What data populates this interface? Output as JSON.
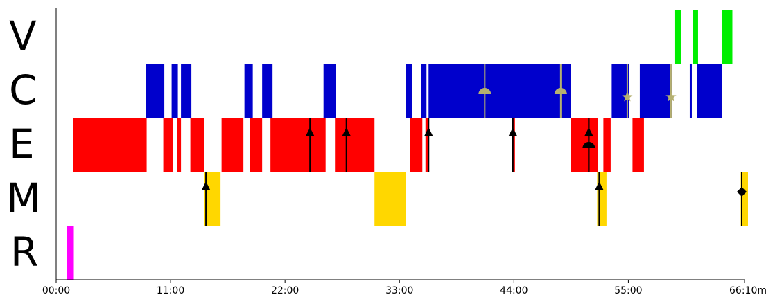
{
  "chart_data": {
    "type": "timeline",
    "x_unit": "minutes",
    "xlim": [
      0,
      66.1667
    ],
    "x_ticks": [
      {
        "value": 0,
        "label": "00:00"
      },
      {
        "value": 11,
        "label": "11:00"
      },
      {
        "value": 22,
        "label": "22:00"
      },
      {
        "value": 33,
        "label": "33:00"
      },
      {
        "value": 44,
        "label": "44:00"
      },
      {
        "value": 55,
        "label": "55:00"
      },
      {
        "value": 66.1667,
        "label": "66:10m"
      }
    ],
    "rows": [
      {
        "label": "V",
        "color": "#00ee00"
      },
      {
        "label": "C",
        "color": "#0000cc"
      },
      {
        "label": "E",
        "color": "#ff0000"
      },
      {
        "label": "M",
        "color": "#ffd700"
      },
      {
        "label": "R",
        "color": "#ff00ff"
      }
    ],
    "segments": [
      {
        "row": "V",
        "start": 59.5,
        "end": 60.1
      },
      {
        "row": "V",
        "start": 61.2,
        "end": 61.7
      },
      {
        "row": "V",
        "start": 64.0,
        "end": 65.0
      },
      {
        "row": "C",
        "start": 8.6,
        "end": 10.4
      },
      {
        "row": "C",
        "start": 11.1,
        "end": 11.7
      },
      {
        "row": "C",
        "start": 12.0,
        "end": 13.0
      },
      {
        "row": "C",
        "start": 18.1,
        "end": 18.9
      },
      {
        "row": "C",
        "start": 19.8,
        "end": 20.8
      },
      {
        "row": "C",
        "start": 25.7,
        "end": 26.9
      },
      {
        "row": "C",
        "start": 33.6,
        "end": 34.2
      },
      {
        "row": "C",
        "start": 35.1,
        "end": 35.6
      },
      {
        "row": "C",
        "start": 35.8,
        "end": 49.5
      },
      {
        "row": "C",
        "start": 53.4,
        "end": 55.1
      },
      {
        "row": "C",
        "start": 56.1,
        "end": 59.2
      },
      {
        "row": "C",
        "start": 60.9,
        "end": 61.1
      },
      {
        "row": "C",
        "start": 61.6,
        "end": 64.0
      },
      {
        "row": "E",
        "start": 1.6,
        "end": 8.7
      },
      {
        "row": "E",
        "start": 10.3,
        "end": 11.2
      },
      {
        "row": "E",
        "start": 11.6,
        "end": 12.0
      },
      {
        "row": "E",
        "start": 12.9,
        "end": 14.2
      },
      {
        "row": "E",
        "start": 15.9,
        "end": 18.0
      },
      {
        "row": "E",
        "start": 18.6,
        "end": 19.8
      },
      {
        "row": "E",
        "start": 20.6,
        "end": 25.9
      },
      {
        "row": "E",
        "start": 26.8,
        "end": 30.6
      },
      {
        "row": "E",
        "start": 34.0,
        "end": 35.2
      },
      {
        "row": "E",
        "start": 35.5,
        "end": 35.8
      },
      {
        "row": "E",
        "start": 43.8,
        "end": 44.1
      },
      {
        "row": "E",
        "start": 49.5,
        "end": 52.1
      },
      {
        "row": "E",
        "start": 52.6,
        "end": 53.3
      },
      {
        "row": "E",
        "start": 55.4,
        "end": 56.5
      },
      {
        "row": "M",
        "start": 14.2,
        "end": 15.8
      },
      {
        "row": "M",
        "start": 30.6,
        "end": 33.6
      },
      {
        "row": "M",
        "start": 52.0,
        "end": 52.9
      },
      {
        "row": "M",
        "start": 65.8,
        "end": 66.5
      },
      {
        "row": "R",
        "start": 1.0,
        "end": 1.7
      }
    ],
    "markers": [
      {
        "row": "E",
        "x": 24.4,
        "symbol": "triangle",
        "color": "#000000"
      },
      {
        "row": "E",
        "x": 27.9,
        "symbol": "triangle",
        "color": "#000000"
      },
      {
        "row": "E",
        "x": 35.8,
        "symbol": "triangle",
        "color": "#000000"
      },
      {
        "row": "E",
        "x": 43.9,
        "symbol": "triangle",
        "color": "#000000"
      },
      {
        "row": "E",
        "x": 51.2,
        "symbol": "triangle",
        "color": "#000000"
      },
      {
        "row": "E",
        "x": 51.2,
        "symbol": "semicircle",
        "color": "#000000"
      },
      {
        "row": "M",
        "x": 14.4,
        "symbol": "triangle",
        "color": "#000000"
      },
      {
        "row": "M",
        "x": 52.2,
        "symbol": "triangle",
        "color": "#000000"
      },
      {
        "row": "M",
        "x": 65.9,
        "symbol": "diamond",
        "color": "#000000"
      },
      {
        "row": "C",
        "x": 41.2,
        "symbol": "semicircle",
        "color": "#b5b070"
      },
      {
        "row": "C",
        "x": 48.5,
        "symbol": "semicircle",
        "color": "#b5b070"
      },
      {
        "row": "C",
        "x": 54.9,
        "symbol": "star",
        "color": "#b5b070"
      },
      {
        "row": "C",
        "x": 59.1,
        "symbol": "star",
        "color": "#b5b070"
      }
    ]
  }
}
